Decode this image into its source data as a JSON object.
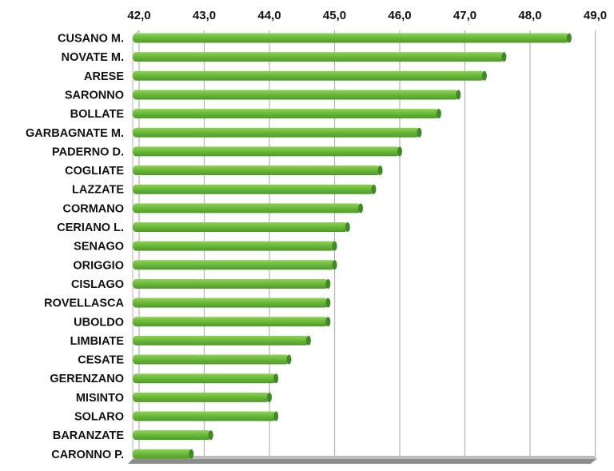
{
  "chart_data": {
    "type": "bar",
    "orientation": "horizontal",
    "style": "3d-cylinder",
    "xlim": [
      42,
      49
    ],
    "ticks": [
      "42,0",
      "43,0",
      "44,0",
      "45,0",
      "46,0",
      "47,0",
      "48,0",
      "49,0"
    ],
    "tick_values": [
      42,
      43,
      44,
      45,
      46,
      47,
      48,
      49
    ],
    "grid": true,
    "axis_position": "top",
    "colors": {
      "bar": "#6dba3a",
      "bar_dark": "#3f8a22",
      "grid": "#b5b5b5",
      "floor": "#8c8c8c"
    },
    "categories": [
      "CUSANO M.",
      "NOVATE M.",
      "ARESE",
      "SARONNO",
      "BOLLATE",
      "GARBAGNATE M.",
      "PADERNO D.",
      "COGLIATE",
      "LAZZATE",
      "CORMANO",
      "CERIANO L.",
      "SENAGO",
      "ORIGGIO",
      "CISLAGO",
      "ROVELLASCA",
      "UBOLDO",
      "LIMBIATE",
      "CESATE",
      "GERENZANO",
      "MISINTO",
      "SOLARO",
      "BARANZATE",
      "CARONNO P."
    ],
    "values": [
      48.6,
      47.6,
      47.3,
      46.9,
      46.6,
      46.3,
      46.0,
      45.7,
      45.6,
      45.4,
      45.2,
      45.0,
      45.0,
      44.9,
      44.9,
      44.9,
      44.6,
      44.3,
      44.1,
      44.0,
      44.1,
      43.1,
      42.8
    ]
  }
}
